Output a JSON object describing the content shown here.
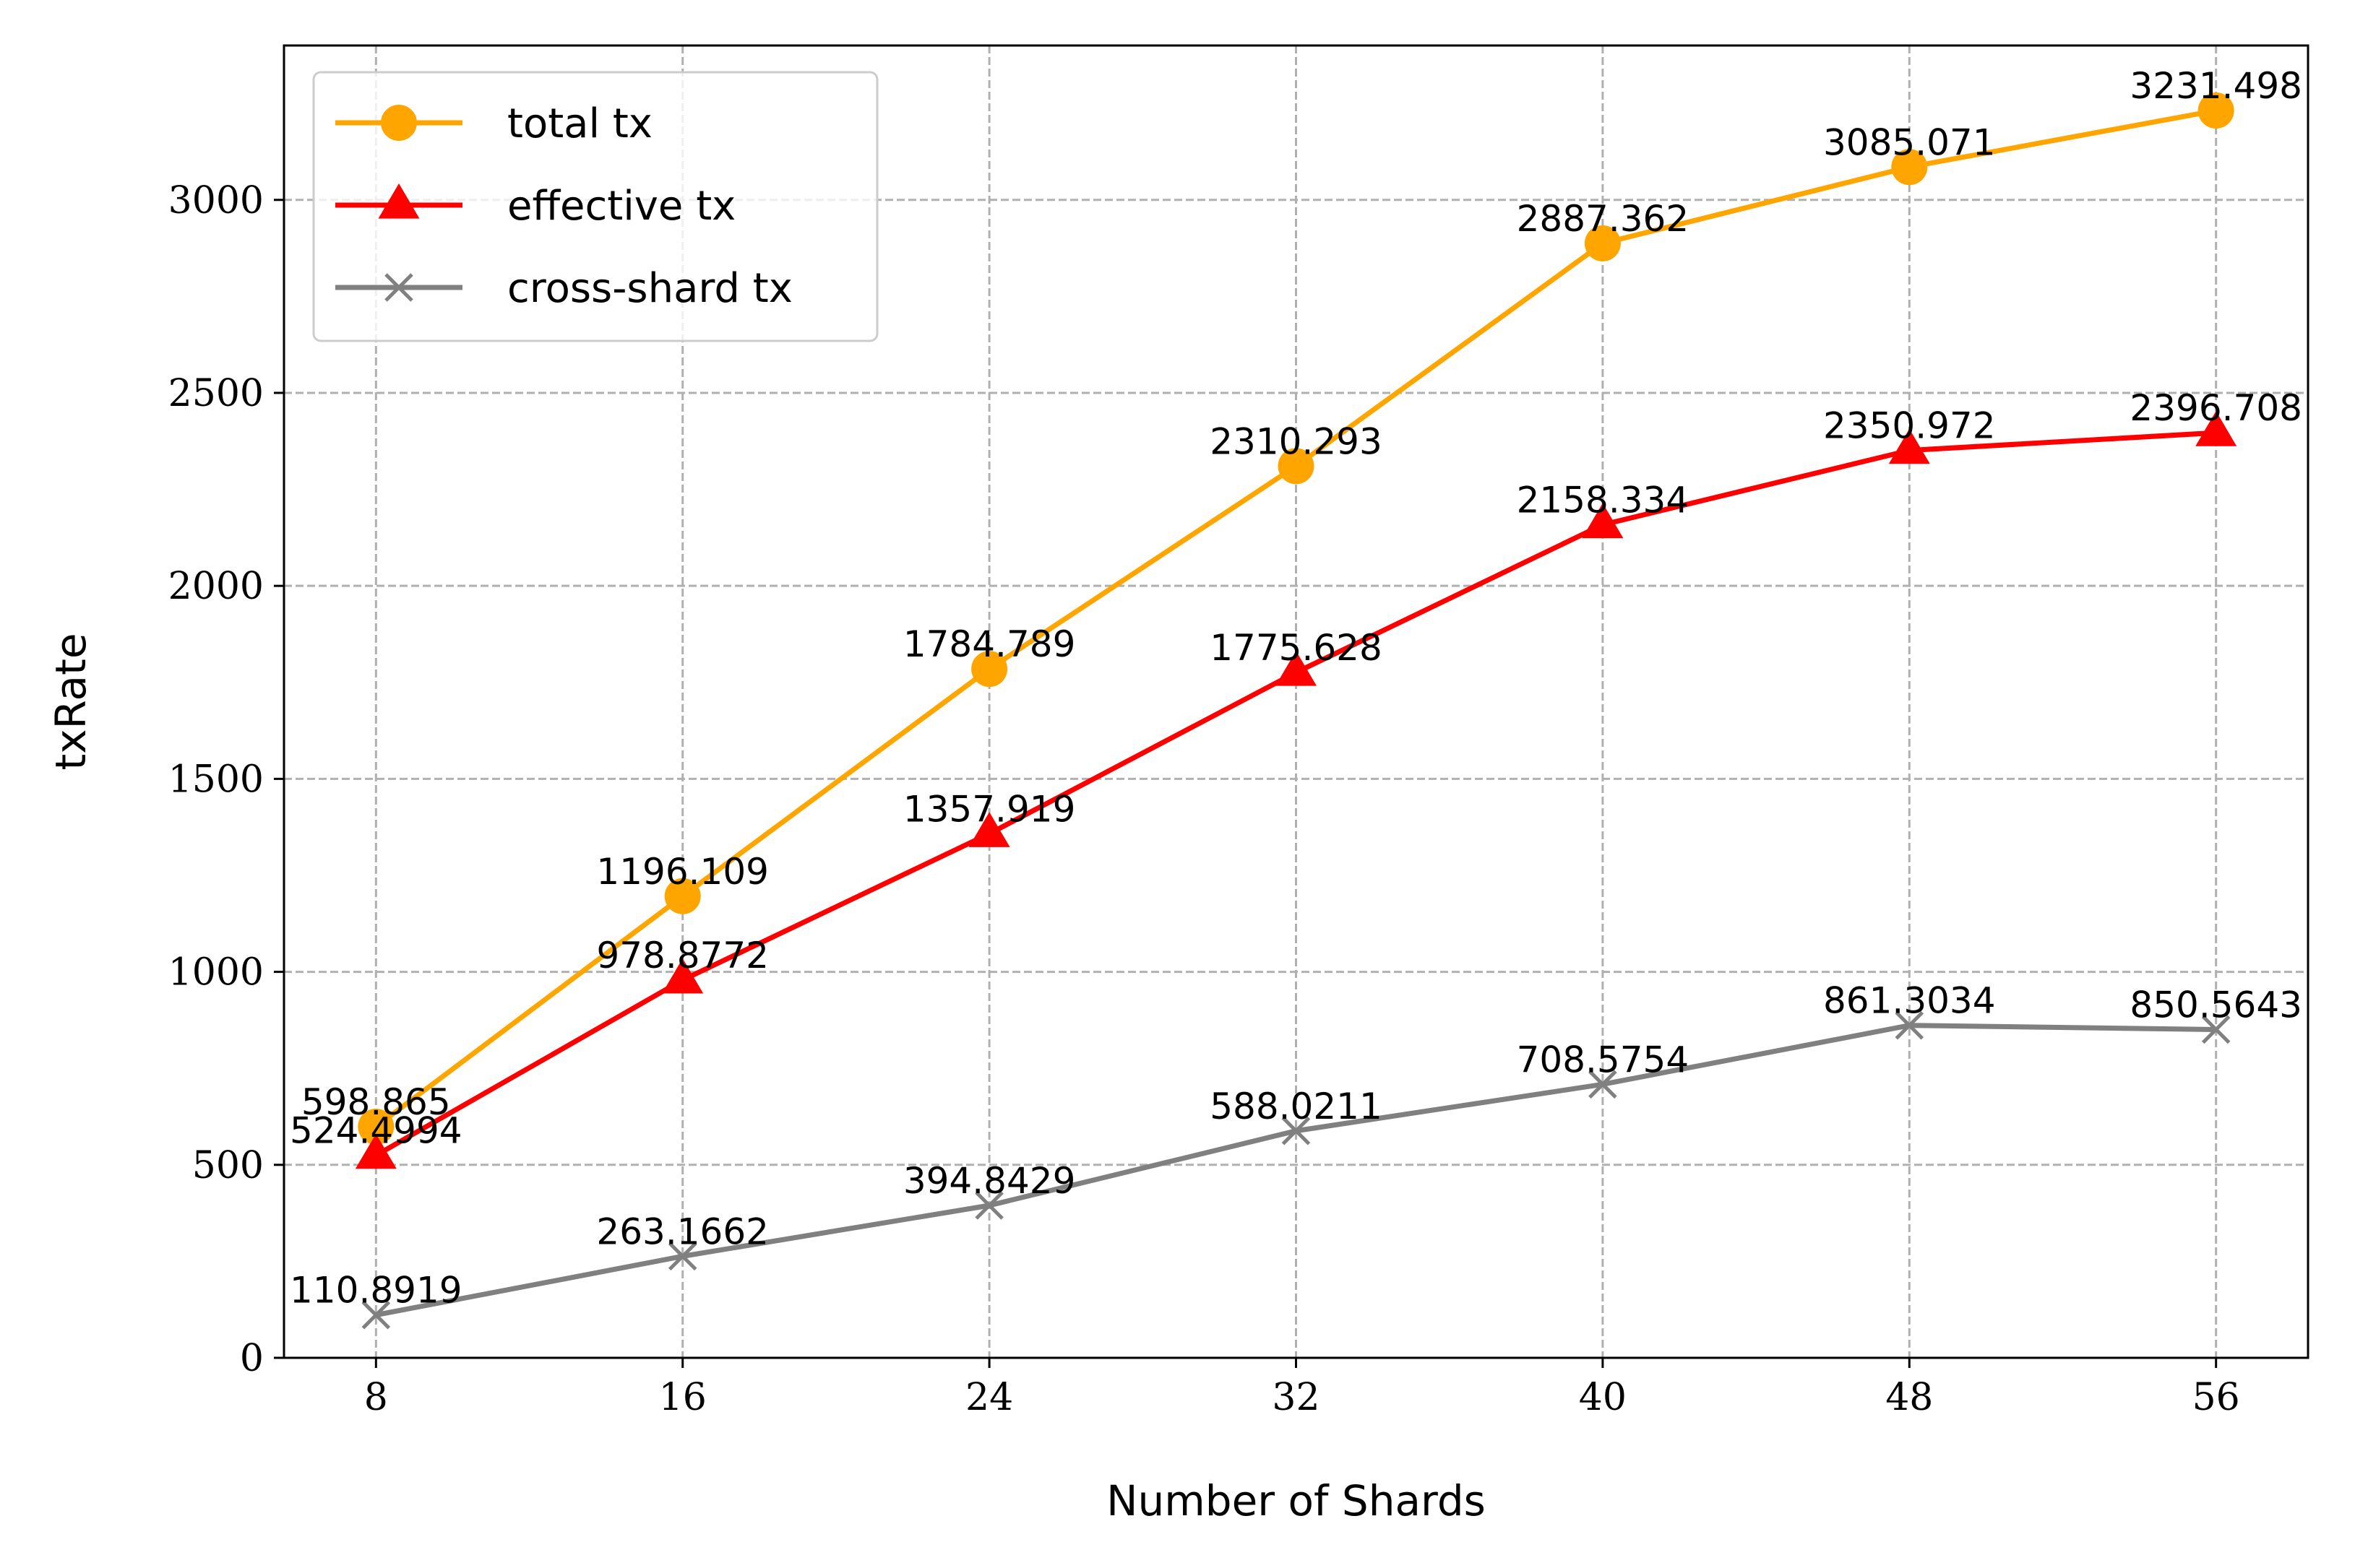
{
  "chart_data": {
    "type": "line",
    "title": "",
    "xlabel": "Number of Shards",
    "ylabel": "txRate",
    "x": [
      8,
      16,
      24,
      32,
      40,
      48,
      56
    ],
    "x_tick_labels": [
      "8",
      "16",
      "24",
      "32",
      "40",
      "48",
      "56"
    ],
    "yticks": [
      0,
      500,
      1000,
      1500,
      2000,
      2500,
      3000
    ],
    "y_tick_labels": [
      "0",
      "500",
      "1000",
      "1500",
      "2000",
      "2500",
      "3000"
    ],
    "xlim": [
      5.6,
      58.4
    ],
    "ylim": [
      0,
      3400
    ],
    "grid": true,
    "grid_style": "dashed",
    "legend_position": "upper-left",
    "series": [
      {
        "name": "total tx",
        "color": "#ffa500",
        "marker": "circle",
        "values": [
          598.865,
          1196.109,
          1784.789,
          2310.293,
          2887.362,
          3085.071,
          3231.498
        ],
        "labels": [
          "598.865",
          "1196.109",
          "1784.789",
          "2310.293",
          "2887.362",
          "3085.071",
          "3231.498"
        ]
      },
      {
        "name": "effective tx",
        "color": "#ff0000",
        "marker": "triangle",
        "values": [
          524.4994,
          978.8772,
          1357.919,
          1775.628,
          2158.334,
          2350.972,
          2396.708
        ],
        "labels": [
          "524.4994",
          "978.8772",
          "1357.919",
          "1775.628",
          "2158.334",
          "2350.972",
          "2396.708"
        ]
      },
      {
        "name": "cross-shard tx",
        "color": "#808080",
        "marker": "x",
        "values": [
          110.8919,
          263.1662,
          394.8429,
          588.0211,
          708.5754,
          861.3034,
          850.5643
        ],
        "labels": [
          "110.8919",
          "263.1662",
          "394.8429",
          "588.0211",
          "708.5754",
          "861.3034",
          "850.5643"
        ]
      }
    ]
  }
}
